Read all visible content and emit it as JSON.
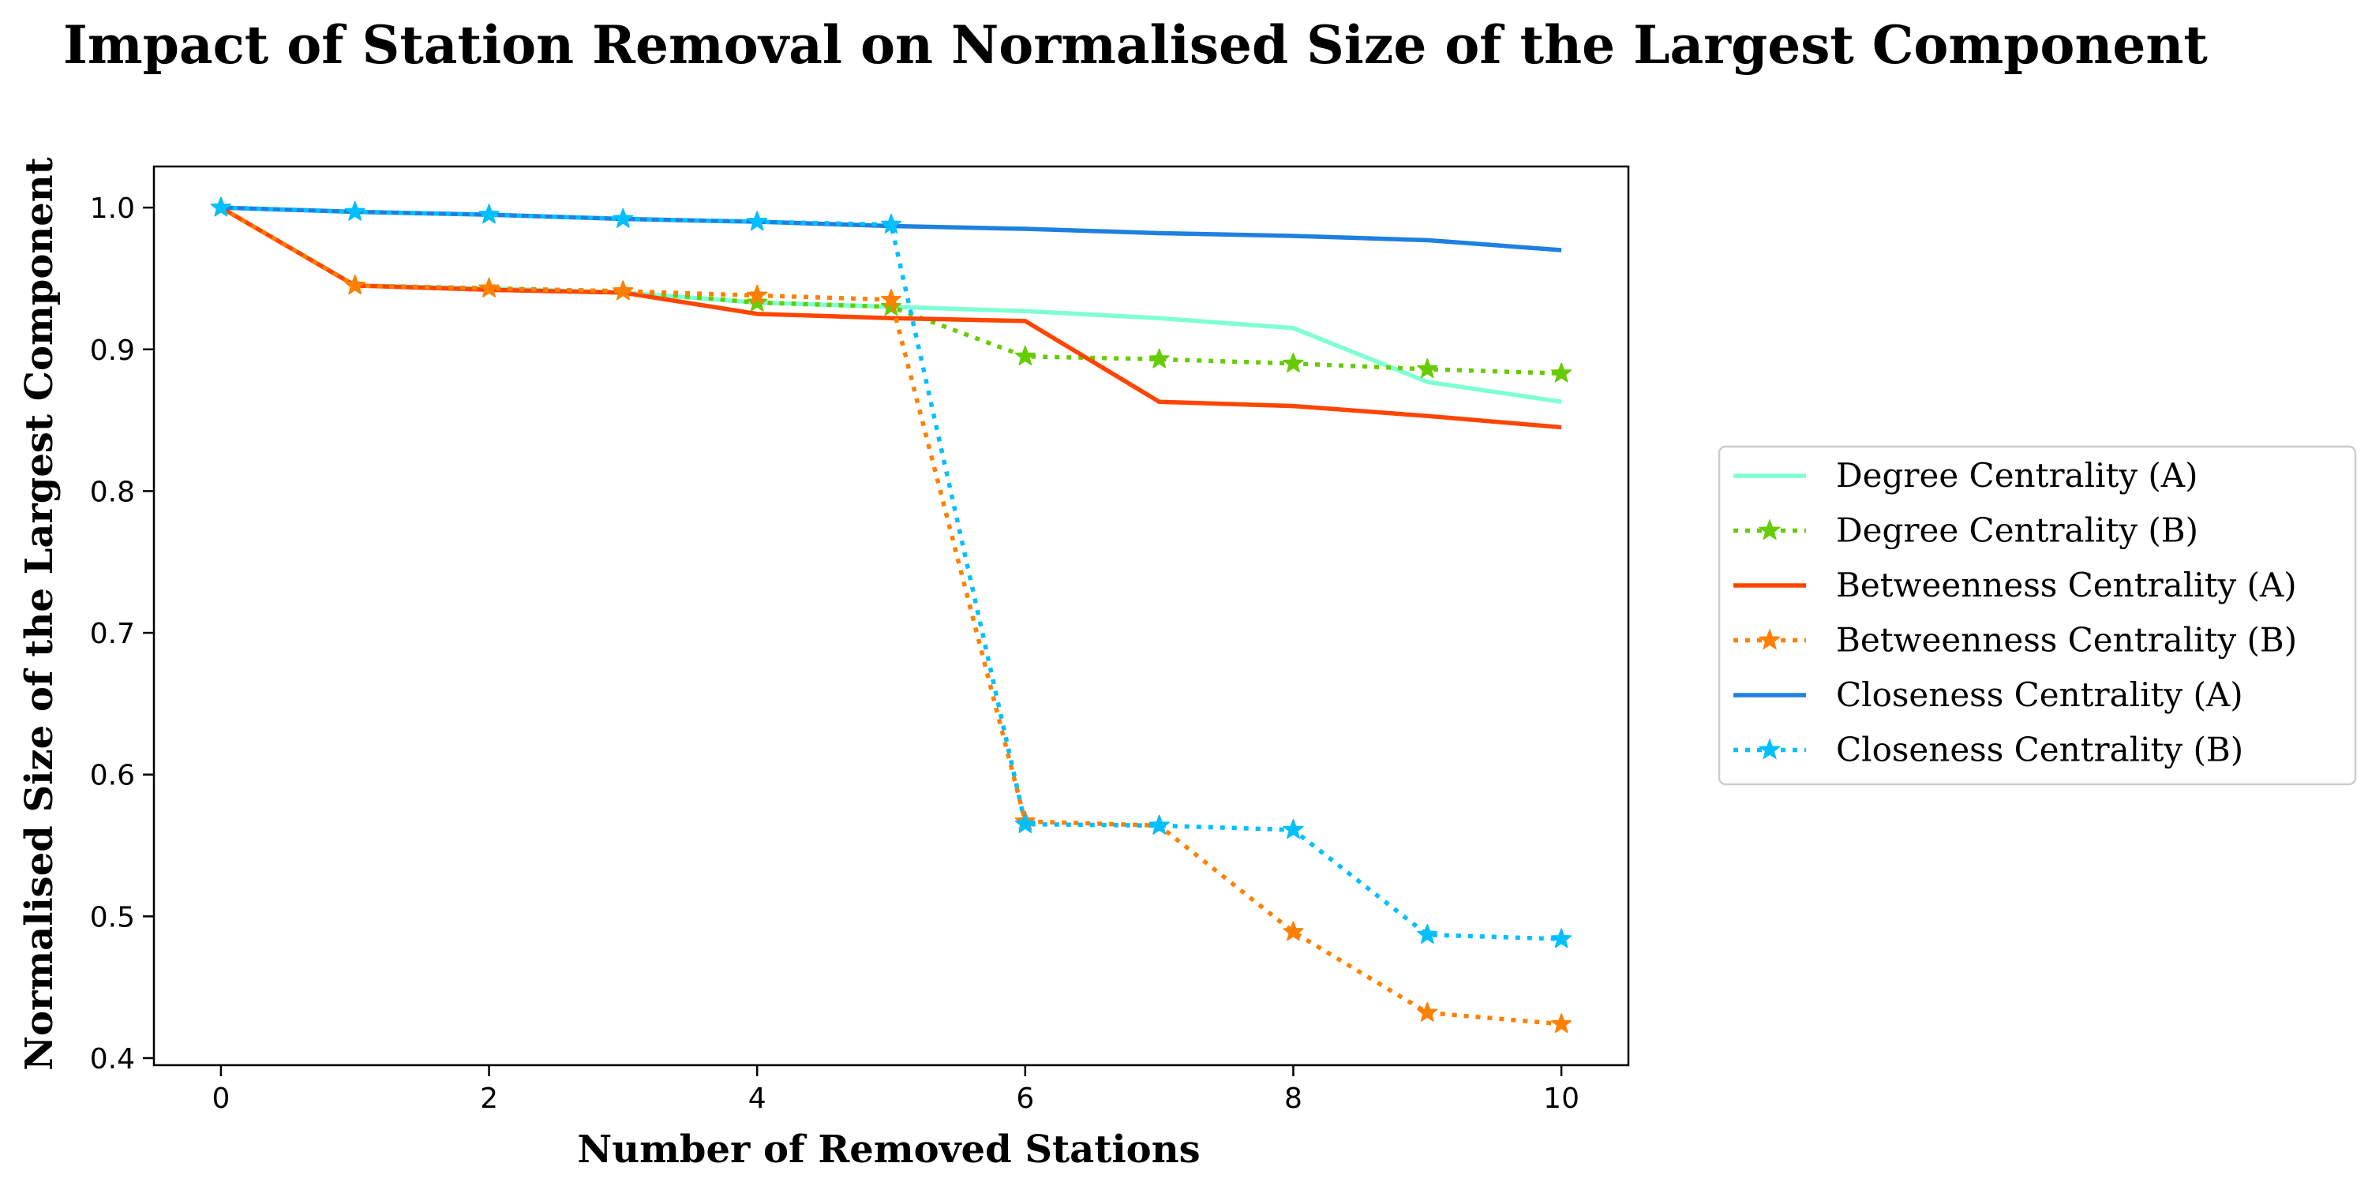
{
  "chart_data": {
    "type": "line",
    "title": "Impact of Station Removal on Normalised Size of the Largest Component",
    "xlabel": "Number of Removed Stations",
    "ylabel": "Normalised Size of the Largest Component",
    "xlim": [
      -0.5,
      10.5
    ],
    "ylim": [
      0.395,
      1.029
    ],
    "x_ticks": [
      0,
      2,
      4,
      6,
      8,
      10
    ],
    "x_tick_labels": [
      "0",
      "2",
      "4",
      "6",
      "8",
      "10"
    ],
    "y_ticks": [
      0.4,
      0.5,
      0.6,
      0.7,
      0.8,
      0.9,
      1.0
    ],
    "y_tick_labels": [
      "0.4",
      "0.5",
      "0.6",
      "0.7",
      "0.8",
      "0.9",
      "1.0"
    ],
    "grid": false,
    "legend_position": "outside-right",
    "x": [
      0,
      1,
      2,
      3,
      4,
      5,
      6,
      7,
      8,
      9,
      10
    ],
    "series": [
      {
        "name": "Degree Centrality (A)",
        "color": "#7fffd4",
        "style": "solid",
        "marker": "none",
        "values": [
          1.0,
          0.945,
          0.943,
          0.94,
          0.933,
          0.93,
          0.927,
          0.922,
          0.915,
          0.877,
          0.863
        ]
      },
      {
        "name": "Degree Centrality (B)",
        "color": "#66cc00",
        "style": "dotted",
        "marker": "star",
        "values": [
          1.0,
          0.945,
          0.943,
          0.941,
          0.933,
          0.93,
          0.895,
          0.893,
          0.89,
          0.886,
          0.883
        ]
      },
      {
        "name": "Betweenness Centrality (A)",
        "color": "#ff4500",
        "style": "solid",
        "marker": "none",
        "values": [
          1.0,
          0.945,
          0.942,
          0.94,
          0.925,
          0.922,
          0.92,
          0.863,
          0.86,
          0.853,
          0.845
        ]
      },
      {
        "name": "Betweenness Centrality (B)",
        "color": "#ff8000",
        "style": "dotted",
        "marker": "star",
        "values": [
          1.0,
          0.945,
          0.943,
          0.941,
          0.938,
          0.935,
          0.567,
          0.564,
          0.489,
          0.432,
          0.424
        ]
      },
      {
        "name": "Closeness Centrality (A)",
        "color": "#1e80e0",
        "style": "solid",
        "marker": "none",
        "values": [
          1.0,
          0.997,
          0.995,
          0.992,
          0.99,
          0.987,
          0.985,
          0.982,
          0.98,
          0.977,
          0.97
        ]
      },
      {
        "name": "Closeness Centrality (B)",
        "color": "#00bfff",
        "style": "dotted",
        "marker": "star",
        "values": [
          1.0,
          0.997,
          0.995,
          0.992,
          0.99,
          0.988,
          0.565,
          0.564,
          0.561,
          0.487,
          0.484
        ]
      }
    ]
  }
}
